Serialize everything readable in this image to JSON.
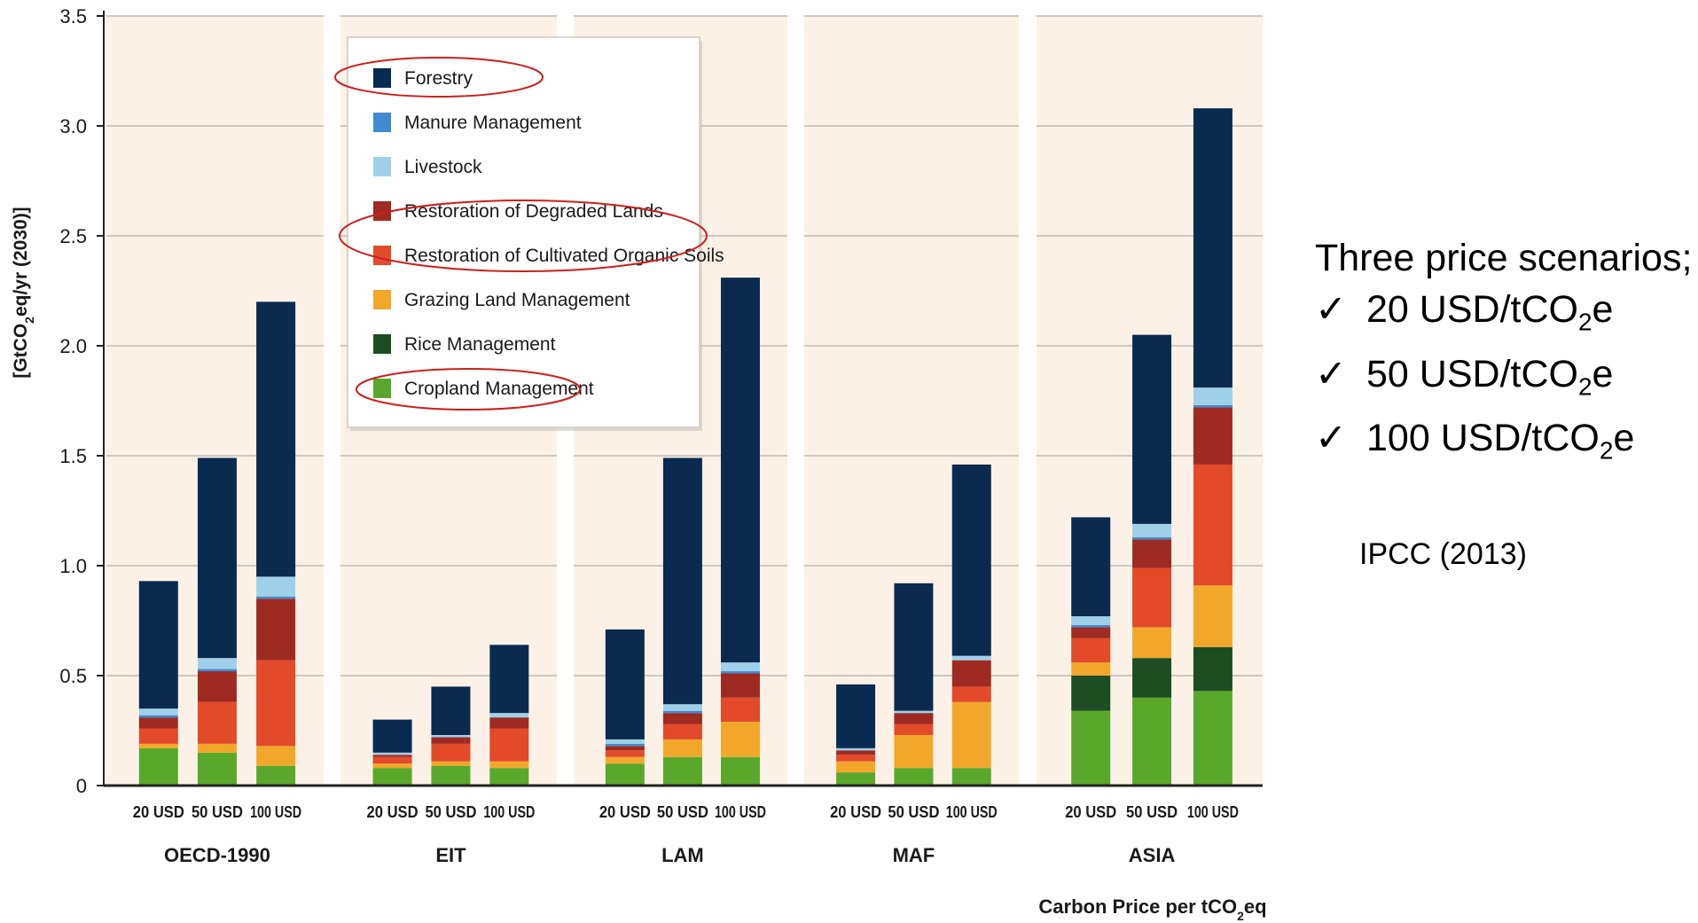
{
  "chart_data": {
    "type": "bar",
    "stacked": true,
    "ylabel_main": "[GtCO",
    "ylabel_sub": "2",
    "ylabel_rest": "eq/yr (2030)]",
    "xlabel_main": "Carbon Price per tCO",
    "xlabel_sub": "2",
    "xlabel_rest": "eq",
    "ylim": [
      0,
      3.5
    ],
    "yticks": [
      "0",
      "0.5",
      "1.0",
      "1.5",
      "2.0",
      "2.5",
      "3.0",
      "3.5"
    ],
    "grid": true,
    "legend_position": "top-left inside",
    "legend": [
      {
        "name": "Forestry",
        "color": "#0b2a4f",
        "circled": true
      },
      {
        "name": "Manure Management",
        "color": "#3f8bd2",
        "circled": false
      },
      {
        "name": "Livestock",
        "color": "#9fd0ea",
        "circled": false
      },
      {
        "name": "Restoration of Degraded Lands",
        "color": "#9e2a22",
        "circled": true
      },
      {
        "name": "Restoration of Cultivated Organic Soils",
        "color": "#e24a2a",
        "circled": true
      },
      {
        "name": "Grazing Land Management",
        "color": "#f2a72b",
        "circled": false
      },
      {
        "name": "Rice Management",
        "color": "#1d4d22",
        "circled": false
      },
      {
        "name": "Cropland Management",
        "color": "#5aa82b",
        "circled": true
      }
    ],
    "stack_order_bottom_to_top": [
      "Cropland Management",
      "Rice Management",
      "Grazing Land Management",
      "Restoration of Cultivated Organic Soils",
      "Restoration of Degraded Lands",
      "Manure Management",
      "Livestock",
      "Forestry"
    ],
    "groups": [
      {
        "region": "OECD-1990",
        "bars": [
          {
            "label": "20 USD",
            "values": {
              "Cropland Management": 0.17,
              "Rice Management": 0.0,
              "Grazing Land Management": 0.02,
              "Restoration of Cultivated Organic Soils": 0.07,
              "Restoration of Degraded Lands": 0.05,
              "Manure Management": 0.01,
              "Livestock": 0.03,
              "Forestry": 0.58
            }
          },
          {
            "label": "50 USD",
            "values": {
              "Cropland Management": 0.15,
              "Rice Management": 0.0,
              "Grazing Land Management": 0.04,
              "Restoration of Cultivated Organic Soils": 0.19,
              "Restoration of Degraded Lands": 0.14,
              "Manure Management": 0.01,
              "Livestock": 0.05,
              "Forestry": 0.91
            }
          },
          {
            "label": "100 USD",
            "values": {
              "Cropland Management": 0.09,
              "Rice Management": 0.0,
              "Grazing Land Management": 0.09,
              "Restoration of Cultivated Organic Soils": 0.39,
              "Restoration of Degraded Lands": 0.28,
              "Manure Management": 0.01,
              "Livestock": 0.09,
              "Forestry": 1.25
            }
          }
        ]
      },
      {
        "region": "EIT",
        "bars": [
          {
            "label": "20 USD",
            "values": {
              "Cropland Management": 0.08,
              "Rice Management": 0.0,
              "Grazing Land Management": 0.02,
              "Restoration of Cultivated Organic Soils": 0.03,
              "Restoration of Degraded Lands": 0.01,
              "Manure Management": 0.0,
              "Livestock": 0.01,
              "Forestry": 0.15
            }
          },
          {
            "label": "50 USD",
            "values": {
              "Cropland Management": 0.09,
              "Rice Management": 0.0,
              "Grazing Land Management": 0.02,
              "Restoration of Cultivated Organic Soils": 0.08,
              "Restoration of Degraded Lands": 0.03,
              "Manure Management": 0.0,
              "Livestock": 0.01,
              "Forestry": 0.22
            }
          },
          {
            "label": "100 USD",
            "values": {
              "Cropland Management": 0.08,
              "Rice Management": 0.0,
              "Grazing Land Management": 0.03,
              "Restoration of Cultivated Organic Soils": 0.15,
              "Restoration of Degraded Lands": 0.05,
              "Manure Management": 0.0,
              "Livestock": 0.02,
              "Forestry": 0.31
            }
          }
        ]
      },
      {
        "region": "LAM",
        "bars": [
          {
            "label": "20 USD",
            "values": {
              "Cropland Management": 0.1,
              "Rice Management": 0.0,
              "Grazing Land Management": 0.03,
              "Restoration of Cultivated Organic Soils": 0.03,
              "Restoration of Degraded Lands": 0.02,
              "Manure Management": 0.01,
              "Livestock": 0.02,
              "Forestry": 0.5
            }
          },
          {
            "label": "50 USD",
            "values": {
              "Cropland Management": 0.13,
              "Rice Management": 0.0,
              "Grazing Land Management": 0.08,
              "Restoration of Cultivated Organic Soils": 0.07,
              "Restoration of Degraded Lands": 0.05,
              "Manure Management": 0.01,
              "Livestock": 0.03,
              "Forestry": 1.12
            }
          },
          {
            "label": "100 USD",
            "values": {
              "Cropland Management": 0.13,
              "Rice Management": 0.0,
              "Grazing Land Management": 0.16,
              "Restoration of Cultivated Organic Soils": 0.11,
              "Restoration of Degraded Lands": 0.11,
              "Manure Management": 0.01,
              "Livestock": 0.04,
              "Forestry": 1.75
            }
          }
        ]
      },
      {
        "region": "MAF",
        "bars": [
          {
            "label": "20 USD",
            "values": {
              "Cropland Management": 0.06,
              "Rice Management": 0.0,
              "Grazing Land Management": 0.05,
              "Restoration of Cultivated Organic Soils": 0.03,
              "Restoration of Degraded Lands": 0.02,
              "Manure Management": 0.0,
              "Livestock": 0.01,
              "Forestry": 0.29
            }
          },
          {
            "label": "50 USD",
            "values": {
              "Cropland Management": 0.08,
              "Rice Management": 0.0,
              "Grazing Land Management": 0.15,
              "Restoration of Cultivated Organic Soils": 0.05,
              "Restoration of Degraded Lands": 0.05,
              "Manure Management": 0.0,
              "Livestock": 0.01,
              "Forestry": 0.58
            }
          },
          {
            "label": "100 USD",
            "values": {
              "Cropland Management": 0.08,
              "Rice Management": 0.0,
              "Grazing Land Management": 0.3,
              "Restoration of Cultivated Organic Soils": 0.07,
              "Restoration of Degraded Lands": 0.12,
              "Manure Management": 0.0,
              "Livestock": 0.02,
              "Forestry": 0.87
            }
          }
        ]
      },
      {
        "region": "ASIA",
        "bars": [
          {
            "label": "20 USD",
            "values": {
              "Cropland Management": 0.34,
              "Rice Management": 0.16,
              "Grazing Land Management": 0.06,
              "Restoration of Cultivated Organic Soils": 0.11,
              "Restoration of Degraded Lands": 0.05,
              "Manure Management": 0.01,
              "Livestock": 0.04,
              "Forestry": 0.45
            }
          },
          {
            "label": "50 USD",
            "values": {
              "Cropland Management": 0.4,
              "Rice Management": 0.18,
              "Grazing Land Management": 0.14,
              "Restoration of Cultivated Organic Soils": 0.27,
              "Restoration of Degraded Lands": 0.13,
              "Manure Management": 0.01,
              "Livestock": 0.06,
              "Forestry": 0.86
            }
          },
          {
            "label": "100 USD",
            "values": {
              "Cropland Management": 0.43,
              "Rice Management": 0.2,
              "Grazing Land Management": 0.28,
              "Restoration of Cultivated Organic Soils": 0.55,
              "Restoration of Degraded Lands": 0.26,
              "Manure Management": 0.01,
              "Livestock": 0.08,
              "Forestry": 1.27
            }
          }
        ]
      }
    ],
    "colors": {
      "panel_background": "#fbf1e6",
      "axis": "#222222",
      "grid": "#b7b1a9",
      "circle": "#cc1f1f"
    }
  },
  "annotation": {
    "heading": "Three price scenarios;",
    "check": "✓",
    "items": [
      {
        "main": "20 USD/tCO",
        "sub": "2",
        "rest": "e"
      },
      {
        "main": "50 USD/tCO",
        "sub": "2",
        "rest": "e"
      },
      {
        "main": "100 USD/tCO",
        "sub": "2",
        "rest": "e"
      }
    ],
    "source": "IPCC (2013)"
  }
}
